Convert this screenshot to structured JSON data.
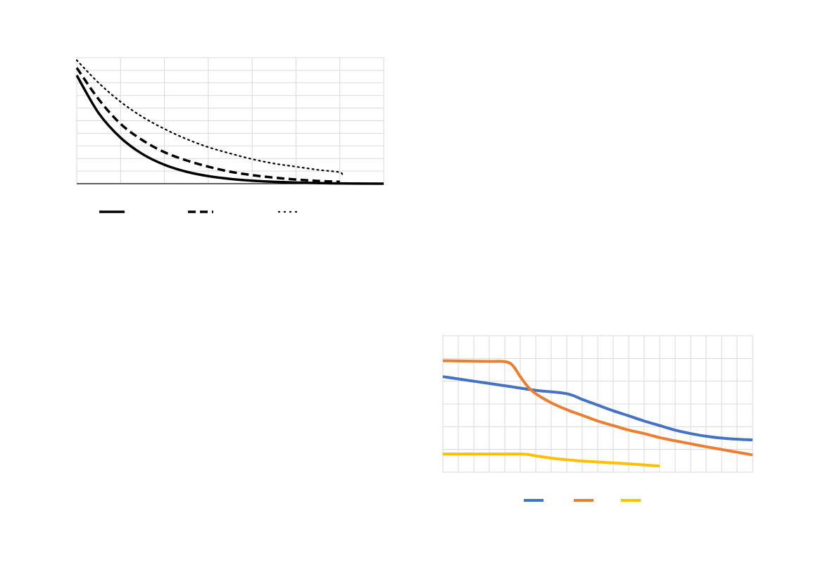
{
  "chart_data": [
    {
      "type": "line",
      "title": "",
      "xlabel": "",
      "ylabel": "",
      "xlim": [
        0,
        7
      ],
      "ylim": [
        0,
        10
      ],
      "grid": true,
      "x_gridlines": 7,
      "y_gridlines": 10,
      "legend_position": "bottom",
      "series": [
        {
          "style": "solid",
          "color": "#000000",
          "x": [
            0,
            0.5,
            1,
            1.5,
            2,
            2.5,
            3,
            3.5,
            4,
            4.5,
            5,
            5.5,
            6,
            7
          ],
          "y": [
            8.6,
            5.6,
            3.65,
            2.35,
            1.5,
            0.95,
            0.6,
            0.38,
            0.24,
            0.15,
            0.09,
            0.05,
            0.02,
            0.0
          ]
        },
        {
          "style": "dashed",
          "color": "#000000",
          "x": [
            0,
            0.5,
            1,
            1.5,
            2,
            2.5,
            3,
            3.5,
            4,
            4.5,
            5,
            5.5,
            6
          ],
          "y": [
            9.2,
            6.7,
            4.75,
            3.45,
            2.5,
            1.85,
            1.35,
            0.95,
            0.68,
            0.48,
            0.33,
            0.22,
            0.15
          ]
        },
        {
          "style": "dotted",
          "color": "#000000",
          "x": [
            0,
            0.5,
            1,
            1.5,
            2,
            2.5,
            3,
            3.5,
            4,
            4.5,
            5,
            5.5,
            6,
            6.05
          ],
          "y": [
            9.8,
            8.0,
            6.5,
            5.3,
            4.35,
            3.55,
            2.9,
            2.4,
            1.95,
            1.6,
            1.35,
            1.1,
            0.9,
            0.6
          ]
        }
      ]
    },
    {
      "type": "line",
      "title": "",
      "xlabel": "",
      "ylabel": "",
      "xlim": [
        0,
        20
      ],
      "ylim": [
        0,
        6
      ],
      "grid": true,
      "x_gridlines": 20,
      "y_gridlines": 6,
      "legend_position": "bottom",
      "series": [
        {
          "color": "#4472c4",
          "x": [
            0,
            2,
            4,
            6,
            8,
            9,
            10,
            11,
            12,
            13,
            14,
            15,
            16,
            17,
            18,
            19,
            20
          ],
          "y": [
            4.2,
            4.0,
            3.8,
            3.6,
            3.45,
            3.2,
            2.95,
            2.7,
            2.48,
            2.25,
            2.05,
            1.85,
            1.7,
            1.58,
            1.5,
            1.45,
            1.42
          ]
        },
        {
          "color": "#ed7d31",
          "x": [
            0,
            1,
            2,
            3,
            4,
            4.5,
            5,
            5.5,
            6,
            7,
            8,
            9,
            10,
            11,
            12,
            13,
            14,
            15,
            16,
            17,
            18,
            19,
            20
          ],
          "y": [
            4.9,
            4.89,
            4.88,
            4.87,
            4.86,
            4.7,
            4.2,
            3.75,
            3.45,
            3.05,
            2.75,
            2.5,
            2.25,
            2.05,
            1.85,
            1.7,
            1.52,
            1.38,
            1.25,
            1.12,
            1.0,
            0.88,
            0.76
          ]
        },
        {
          "color": "#ffc000",
          "x": [
            0,
            1,
            2,
            3,
            4,
            5,
            5.5,
            6,
            7,
            8,
            9,
            10,
            11,
            12,
            13,
            14
          ],
          "y": [
            0.8,
            0.8,
            0.8,
            0.8,
            0.8,
            0.8,
            0.78,
            0.72,
            0.62,
            0.55,
            0.49,
            0.45,
            0.41,
            0.37,
            0.32,
            0.27
          ]
        }
      ]
    }
  ]
}
